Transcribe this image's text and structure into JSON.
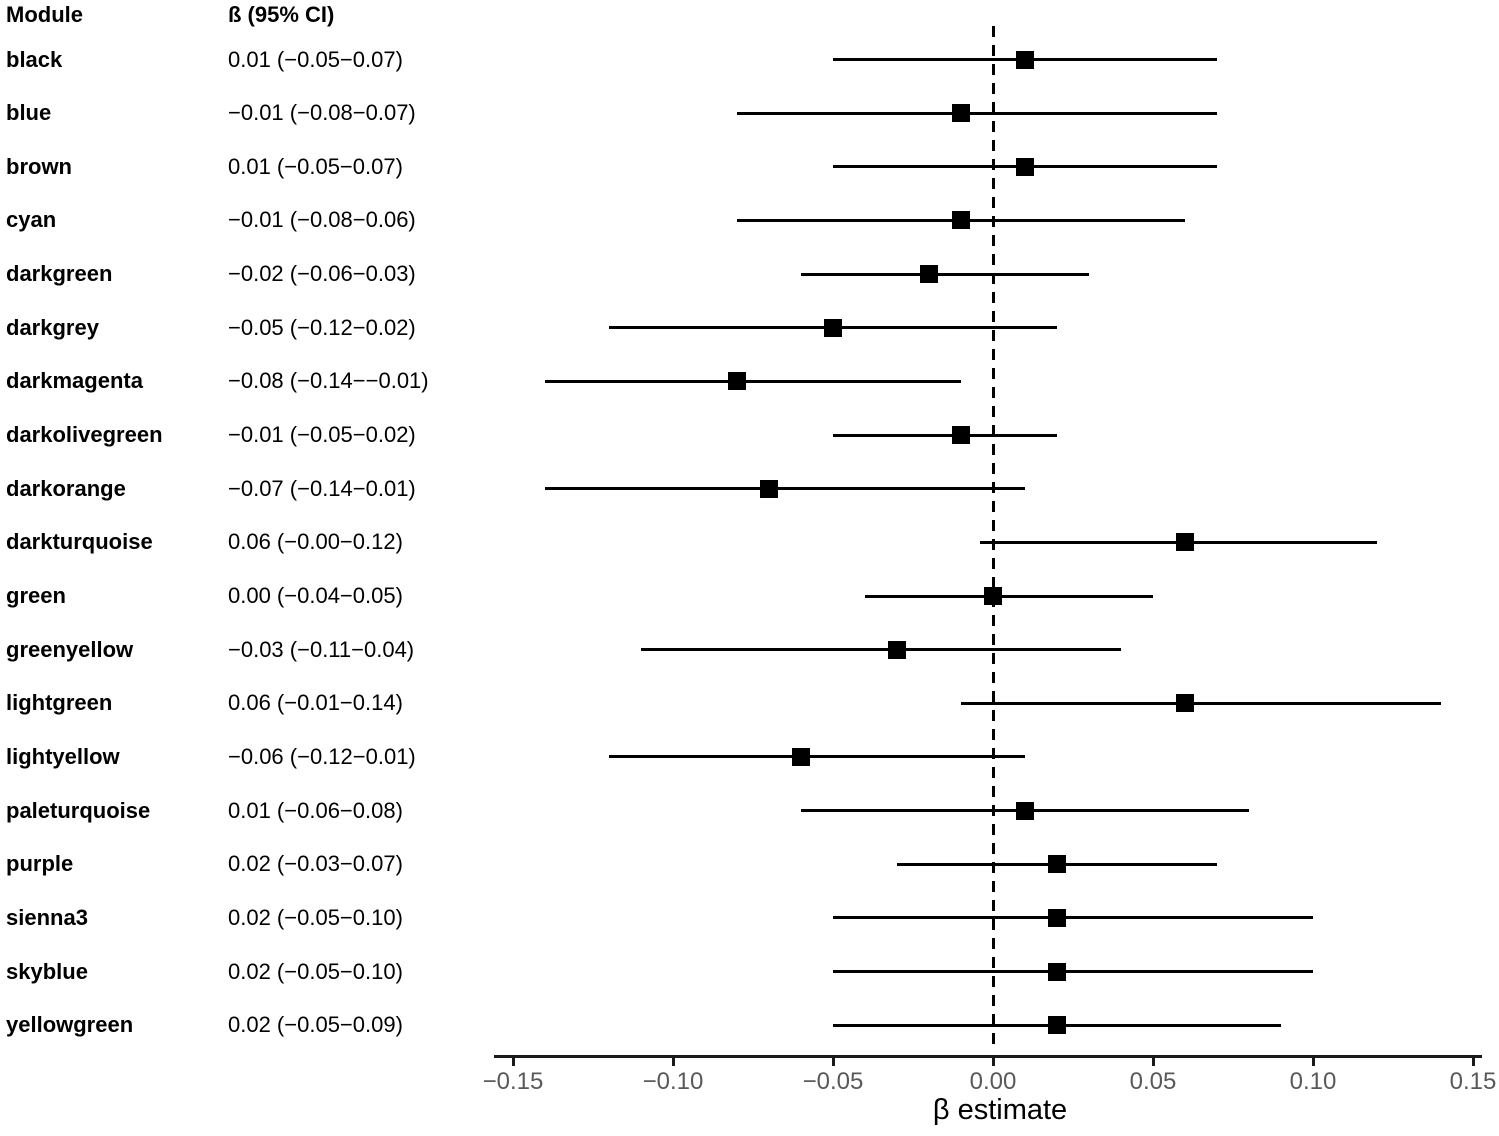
{
  "chart_data": {
    "type": "forest",
    "title": "",
    "xlabel": "β estimate",
    "columns": {
      "module": "Module",
      "beta_ci": "ß (95% CI)"
    },
    "x_tick_values": [
      -0.15,
      -0.1,
      -0.05,
      0.0,
      0.05,
      0.1,
      0.15
    ],
    "x_tick_labels": [
      "−0.15",
      "−0.10",
      "−0.05",
      "0.00",
      "0.05",
      "0.10",
      "0.15"
    ],
    "xlim": [
      -0.156,
      0.153
    ],
    "zero_line": 0,
    "grid": false,
    "legend": "none",
    "rows": [
      {
        "module": "black",
        "ci_text": "0.01 (−0.05−0.07)",
        "estimate": 0.01,
        "ci_low": -0.05,
        "ci_high": 0.07
      },
      {
        "module": "blue",
        "ci_text": "−0.01 (−0.08−0.07)",
        "estimate": -0.01,
        "ci_low": -0.08,
        "ci_high": 0.07
      },
      {
        "module": "brown",
        "ci_text": "0.01 (−0.05−0.07)",
        "estimate": 0.01,
        "ci_low": -0.05,
        "ci_high": 0.07
      },
      {
        "module": "cyan",
        "ci_text": "−0.01 (−0.08−0.06)",
        "estimate": -0.01,
        "ci_low": -0.08,
        "ci_high": 0.06
      },
      {
        "module": "darkgreen",
        "ci_text": "−0.02 (−0.06−0.03)",
        "estimate": -0.02,
        "ci_low": -0.06,
        "ci_high": 0.03
      },
      {
        "module": "darkgrey",
        "ci_text": "−0.05 (−0.12−0.02)",
        "estimate": -0.05,
        "ci_low": -0.12,
        "ci_high": 0.02
      },
      {
        "module": "darkmagenta",
        "ci_text": "−0.08 (−0.14−−0.01)",
        "estimate": -0.08,
        "ci_low": -0.14,
        "ci_high": -0.01
      },
      {
        "module": "darkolivegreen",
        "ci_text": "−0.01 (−0.05−0.02)",
        "estimate": -0.01,
        "ci_low": -0.05,
        "ci_high": 0.02
      },
      {
        "module": "darkorange",
        "ci_text": "−0.07 (−0.14−0.01)",
        "estimate": -0.07,
        "ci_low": -0.14,
        "ci_high": 0.01
      },
      {
        "module": "darkturquoise",
        "ci_text": "0.06 (−0.00−0.12)",
        "estimate": 0.06,
        "ci_low": -0.004,
        "ci_high": 0.12
      },
      {
        "module": "green",
        "ci_text": "0.00 (−0.04−0.05)",
        "estimate": 0.0,
        "ci_low": -0.04,
        "ci_high": 0.05
      },
      {
        "module": "greenyellow",
        "ci_text": "−0.03 (−0.11−0.04)",
        "estimate": -0.03,
        "ci_low": -0.11,
        "ci_high": 0.04
      },
      {
        "module": "lightgreen",
        "ci_text": "0.06 (−0.01−0.14)",
        "estimate": 0.06,
        "ci_low": -0.01,
        "ci_high": 0.14
      },
      {
        "module": "lightyellow",
        "ci_text": "−0.06 (−0.12−0.01)",
        "estimate": -0.06,
        "ci_low": -0.12,
        "ci_high": 0.01
      },
      {
        "module": "paleturquoise",
        "ci_text": "0.01 (−0.06−0.08)",
        "estimate": 0.01,
        "ci_low": -0.06,
        "ci_high": 0.08
      },
      {
        "module": "purple",
        "ci_text": "0.02 (−0.03−0.07)",
        "estimate": 0.02,
        "ci_low": -0.03,
        "ci_high": 0.07
      },
      {
        "module": "sienna3",
        "ci_text": "0.02 (−0.05−0.10)",
        "estimate": 0.02,
        "ci_low": -0.05,
        "ci_high": 0.1
      },
      {
        "module": "skyblue",
        "ci_text": "0.02 (−0.05−0.10)",
        "estimate": 0.02,
        "ci_low": -0.05,
        "ci_high": 0.1
      },
      {
        "module": "yellowgreen",
        "ci_text": "0.02 (−0.05−0.09)",
        "estimate": 0.02,
        "ci_low": -0.05,
        "ci_high": 0.09
      }
    ],
    "colors": {
      "text": "#000000",
      "marker": "#000000",
      "ci_line": "#000000",
      "zero_line": "#000000",
      "axis": "#1a1a1a",
      "tick_label": "#595959"
    }
  }
}
